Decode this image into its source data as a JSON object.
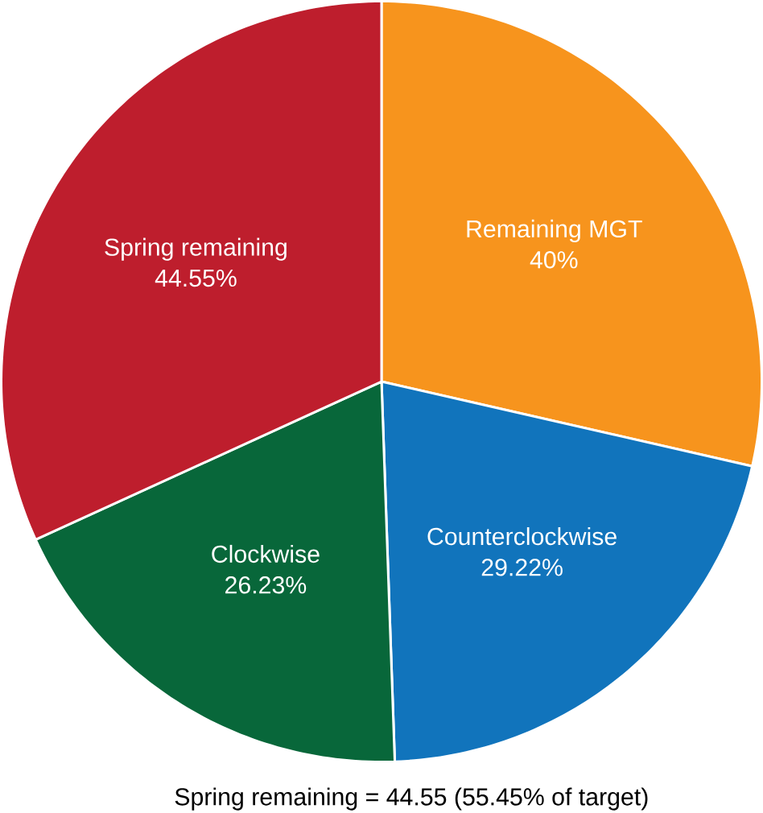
{
  "chart_data": {
    "type": "pie",
    "categories": [
      "Remaining MGT",
      "Counterclockwise",
      "Clockwise",
      "Spring remaining"
    ],
    "values": [
      40,
      29.22,
      26.23,
      44.55
    ],
    "value_labels": [
      "40%",
      "29.22%",
      "26.23%",
      "44.55%"
    ],
    "colors": [
      "#f7941d",
      "#1174bc",
      "#08673a",
      "#be1e2d"
    ],
    "annotations": [
      "Spring remaining = 44.55 (55.45% of target)"
    ]
  }
}
